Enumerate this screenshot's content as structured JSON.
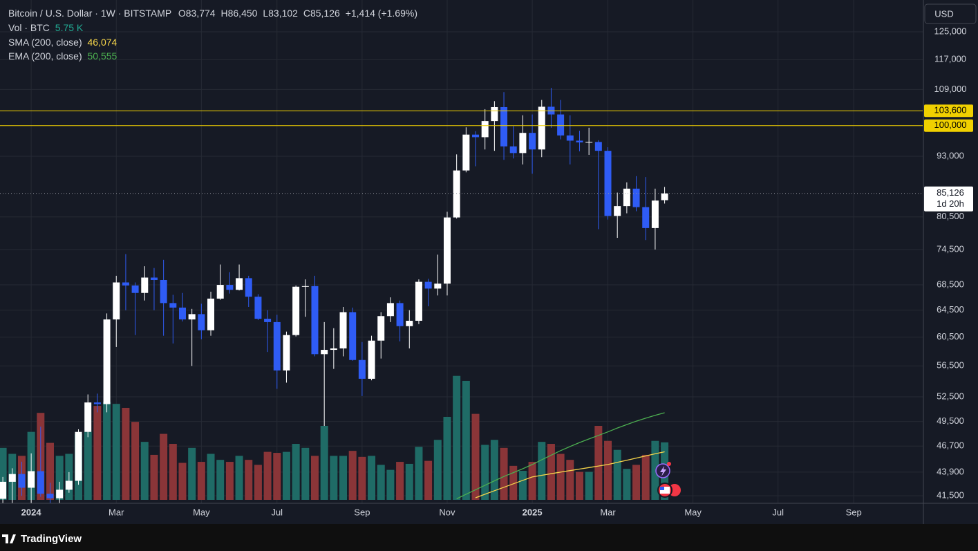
{
  "chart_data": {
    "type": "candlestick",
    "title": "Bitcoin / U.S. Dollar · 1W · BITSTAMP",
    "ohlc_labels": [
      {
        "key": "O",
        "text": "83,774"
      },
      {
        "key": "H",
        "text": "86,450"
      },
      {
        "key": "L",
        "text": "83,102"
      },
      {
        "key": "C",
        "text": "85,126"
      }
    ],
    "change": "+1,414 (+1.69%)",
    "currency": "USD",
    "log": true,
    "grid": true,
    "up_color": "#ffffff",
    "down_color": "#2f5cf5",
    "xlim": [
      -0.3,
      97.3
    ],
    "xticks": [
      {
        "value": 3,
        "label": "2024"
      },
      {
        "value": 12,
        "label": "Mar"
      },
      {
        "value": 21,
        "label": "May"
      },
      {
        "value": 29,
        "label": "Jul"
      },
      {
        "value": 38,
        "label": "Sep"
      },
      {
        "value": 47,
        "label": "Nov"
      },
      {
        "value": 56,
        "label": "2025"
      },
      {
        "value": 64,
        "label": "Mar"
      },
      {
        "value": 73,
        "label": "May"
      },
      {
        "value": 82,
        "label": "Jul"
      },
      {
        "value": 90,
        "label": "Sep"
      }
    ],
    "ylim": [
      41100,
      134800
    ],
    "yticks": [
      {
        "value": 125000,
        "label": "125,000"
      },
      {
        "value": 117000,
        "label": "117,000"
      },
      {
        "value": 109000,
        "label": "109,000"
      },
      {
        "value": 93000,
        "label": "93,000"
      },
      {
        "value": 80500,
        "label": "80,500"
      },
      {
        "value": 74500,
        "label": "74,500"
      },
      {
        "value": 68500,
        "label": "68,500"
      },
      {
        "value": 64500,
        "label": "64,500"
      },
      {
        "value": 60500,
        "label": "60,500"
      },
      {
        "value": 56500,
        "label": "56,500"
      },
      {
        "value": 52500,
        "label": "52,500"
      },
      {
        "value": 49500,
        "label": "49,500"
      },
      {
        "value": 46700,
        "label": "46,700"
      },
      {
        "value": 43900,
        "label": "43,900"
      },
      {
        "value": 41500,
        "label": "41,500"
      }
    ],
    "hlines": [
      {
        "value": 103600,
        "label": "103,600",
        "color": "#f0d000"
      },
      {
        "value": 100000,
        "label": "100,000",
        "color": "#f0d000"
      }
    ],
    "last_price": {
      "value": 85126,
      "label": "85,126",
      "countdown": "1d 20h"
    },
    "x": [
      0,
      1,
      2,
      3,
      4,
      5,
      6,
      7,
      8,
      9,
      10,
      11,
      12,
      13,
      14,
      15,
      16,
      17,
      18,
      19,
      20,
      21,
      22,
      23,
      24,
      25,
      26,
      27,
      28,
      29,
      30,
      31,
      32,
      33,
      34,
      35,
      36,
      37,
      38,
      39,
      40,
      41,
      42,
      43,
      44,
      45,
      46,
      47,
      48,
      49,
      50,
      51,
      52,
      53,
      54,
      55,
      56,
      57,
      58,
      59,
      60,
      61,
      62,
      63,
      64,
      65,
      66,
      67,
      68,
      69,
      70
    ],
    "open": [
      41200,
      42900,
      43700,
      42300,
      44000,
      41700,
      41250,
      42100,
      43000,
      48300,
      51800,
      51600,
      63100,
      68900,
      68400,
      67200,
      69700,
      69300,
      65600,
      64900,
      63100,
      63900,
      61500,
      66300,
      68500,
      67700,
      69600,
      66600,
      63200,
      62700,
      55900,
      60800,
      68200,
      68300,
      58100,
      58700,
      58900,
      64200,
      57300,
      54800,
      60000,
      63600,
      65600,
      62100,
      62900,
      69000,
      67900,
      68700,
      80400,
      89900,
      97900,
      97300,
      101100,
      104500,
      95200,
      93700,
      98300,
      94500,
      104600,
      102700,
      97700,
      96500,
      96100,
      96200,
      94200,
      80700,
      82600,
      86100,
      82400,
      78400,
      83774
    ],
    "high": [
      43400,
      44300,
      45000,
      45900,
      48900,
      42800,
      42900,
      43900,
      48600,
      52800,
      52900,
      64000,
      70000,
      73700,
      68900,
      71600,
      71300,
      72700,
      66900,
      67200,
      64700,
      65500,
      67400,
      71900,
      70600,
      71900,
      70000,
      67000,
      64500,
      63800,
      61300,
      68400,
      69400,
      70000,
      62700,
      61800,
      65000,
      64900,
      59800,
      60700,
      64200,
      66500,
      66000,
      64500,
      69400,
      69500,
      73600,
      81500,
      93400,
      99600,
      98700,
      104000,
      106000,
      108300,
      99900,
      102500,
      102700,
      106300,
      109400,
      106300,
      102500,
      98800,
      99500,
      96600,
      95000,
      85300,
      87400,
      88700,
      88500,
      86100,
      86450
    ],
    "low": [
      40200,
      40600,
      41500,
      40800,
      41400,
      40600,
      40800,
      41800,
      42600,
      47700,
      50600,
      50600,
      59100,
      64500,
      60800,
      66000,
      64500,
      60700,
      59600,
      62800,
      56500,
      60200,
      60700,
      66100,
      67100,
      67600,
      65000,
      63000,
      58400,
      53500,
      54300,
      60600,
      63500,
      57800,
      49000,
      56100,
      57800,
      57200,
      52600,
      54600,
      57500,
      62700,
      59900,
      58900,
      62400,
      65100,
      66800,
      66800,
      80200,
      89500,
      90800,
      94500,
      94200,
      92200,
      92500,
      91200,
      89200,
      92800,
      99500,
      96800,
      91200,
      94100,
      93300,
      78200,
      80000,
      76600,
      81200,
      81600,
      76200,
      74500,
      83102
    ],
    "close": [
      42900,
      43700,
      42300,
      44000,
      41700,
      41250,
      42100,
      43000,
      48300,
      51800,
      51600,
      63100,
      68900,
      68400,
      67200,
      69700,
      69300,
      65600,
      64900,
      63100,
      63900,
      61500,
      66300,
      68500,
      67700,
      69600,
      66600,
      63200,
      62700,
      55900,
      60800,
      68200,
      68300,
      58100,
      58700,
      58900,
      64200,
      57300,
      54800,
      60000,
      63600,
      65600,
      62100,
      62900,
      69000,
      67900,
      68700,
      80400,
      89900,
      97900,
      97300,
      101100,
      104500,
      95200,
      93700,
      98300,
      94500,
      104600,
      102700,
      97700,
      96500,
      96100,
      96200,
      94200,
      80700,
      82600,
      86100,
      82400,
      78400,
      83700,
      85126
    ],
    "volume": {
      "name": "Vol · BTC",
      "value_label": "5.75 K",
      "ylim": [
        0,
        50
      ],
      "up_color": "#1f6b66",
      "down_color": "#8a3538",
      "values": [
        5.2,
        4.6,
        4.4,
        6.8,
        8.7,
        5.7,
        4.4,
        4.6,
        6.6,
        6.8,
        9.4,
        9.8,
        9.6,
        9.2,
        7.8,
        5.8,
        4.5,
        6.6,
        5.6,
        3.7,
        5.2,
        3.8,
        4.6,
        4.0,
        3.8,
        4.4,
        4.0,
        3.5,
        4.8,
        4.7,
        4.8,
        5.6,
        5.2,
        4.4,
        7.4,
        4.4,
        4.4,
        4.9,
        4.3,
        4.4,
        3.5,
        3.0,
        3.8,
        3.6,
        5.3,
        3.9,
        6.0,
        8.3,
        12.4,
        11.9,
        8.6,
        5.5,
        6.0,
        5.2,
        3.4,
        2.9,
        3.8,
        5.8,
        5.6,
        4.6,
        4.0,
        2.8,
        2.8,
        7.4,
        5.9,
        5.0,
        3.1,
        3.5,
        4.5,
        5.9,
        5.75
      ]
    },
    "series": [
      {
        "name": "SMA (200, close)",
        "value_label": "46,074",
        "color": "#f7d64a",
        "values": [
          null,
          null,
          null,
          null,
          null,
          null,
          null,
          null,
          null,
          null,
          null,
          null,
          null,
          null,
          null,
          null,
          null,
          null,
          null,
          null,
          null,
          null,
          null,
          null,
          null,
          null,
          null,
          null,
          null,
          null,
          null,
          null,
          null,
          null,
          null,
          null,
          null,
          null,
          null,
          null,
          null,
          null,
          null,
          null,
          null,
          null,
          null,
          null,
          null,
          null,
          41300,
          41650,
          42000,
          42350,
          42700,
          43050,
          43400,
          43570,
          43730,
          43900,
          44060,
          44220,
          44380,
          44540,
          44700,
          44930,
          45160,
          45390,
          45620,
          45850,
          46074
        ]
      },
      {
        "name": "EMA (200, close)",
        "value_label": "50,555",
        "color": "#4caf50",
        "values": [
          null,
          null,
          null,
          null,
          null,
          null,
          null,
          null,
          null,
          null,
          null,
          null,
          null,
          null,
          null,
          null,
          null,
          null,
          null,
          null,
          null,
          null,
          null,
          null,
          null,
          null,
          null,
          null,
          null,
          null,
          null,
          null,
          null,
          null,
          null,
          null,
          null,
          null,
          null,
          null,
          null,
          null,
          null,
          null,
          null,
          null,
          null,
          null,
          41200,
          41650,
          42100,
          42550,
          43000,
          43450,
          43850,
          44250,
          44700,
          45200,
          45700,
          46200,
          46650,
          47100,
          47500,
          47900,
          48300,
          48750,
          49150,
          49550,
          49900,
          50250,
          50555
        ]
      }
    ]
  },
  "footer": {
    "brand": "TradingView"
  }
}
